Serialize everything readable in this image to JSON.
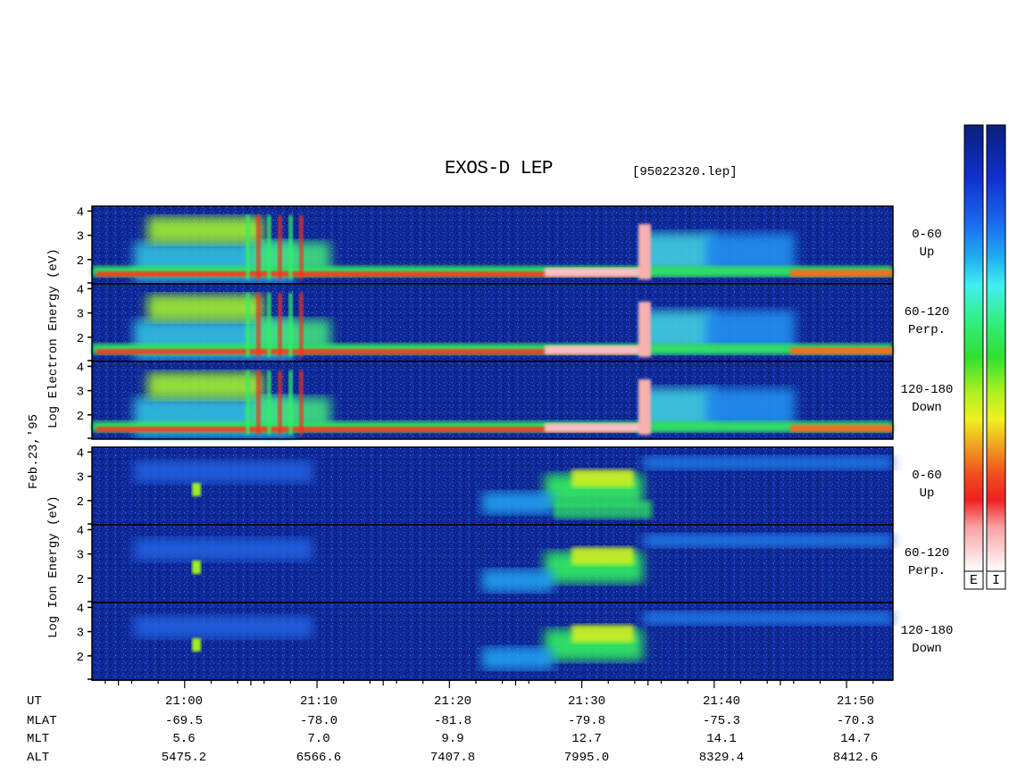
{
  "title": "EXOS-D LEP",
  "file_label": "[95022320.lep]",
  "date_label": "Feb.23,'95",
  "electron_axis_label": "Log  Electron  Energy (eV)",
  "ion_axis_label": "Log  Ion  Energy (eV)",
  "colorbar": {
    "electron_label": "E",
    "ion_label": "I",
    "colors": [
      "#0a1f7a",
      "#1030d0",
      "#1a5af0",
      "#20a0f0",
      "#40f0f0",
      "#30f080",
      "#30e030",
      "#b0f020",
      "#f0f020",
      "#f0a020",
      "#f05020",
      "#f02020",
      "#f8a0a0",
      "#ffffff"
    ]
  },
  "chart_data": {
    "type": "heatmap",
    "x_time_range": [
      "20:53",
      "21:53"
    ],
    "x_ticks": [
      "21:00",
      "21:10",
      "21:20",
      "21:30",
      "21:40",
      "21:50"
    ],
    "y_ticks": [
      "4",
      "3",
      "2"
    ],
    "ylim": [
      1,
      4.2
    ],
    "panels": [
      {
        "species": "electron",
        "pitch_angle": "0-60",
        "direction": "Up"
      },
      {
        "species": "electron",
        "pitch_angle": "60-120",
        "direction": "Perp."
      },
      {
        "species": "electron",
        "pitch_angle": "120-180",
        "direction": "Down"
      },
      {
        "species": "ion",
        "pitch_angle": "0-60",
        "direction": "Up"
      },
      {
        "species": "ion",
        "pitch_angle": "60-120",
        "direction": "Perp."
      },
      {
        "species": "ion",
        "pitch_angle": "120-180",
        "direction": "Down"
      }
    ]
  },
  "orbit_table": {
    "rows": [
      {
        "label": "UT",
        "values": [
          "21:00",
          "21:10",
          "21:20",
          "21:30",
          "21:40",
          "21:50"
        ]
      },
      {
        "label": "MLAT",
        "values": [
          "-69.5",
          "-78.0",
          "-81.8",
          "-79.8",
          "-75.3",
          "-70.3"
        ]
      },
      {
        "label": "MLT",
        "values": [
          "5.6",
          "7.0",
          "9.9",
          "12.7",
          "14.1",
          "14.7"
        ]
      },
      {
        "label": "ALT",
        "values": [
          "5475.2",
          "6566.6",
          "7407.8",
          "7995.0",
          "8329.4",
          "8412.6"
        ]
      }
    ]
  }
}
